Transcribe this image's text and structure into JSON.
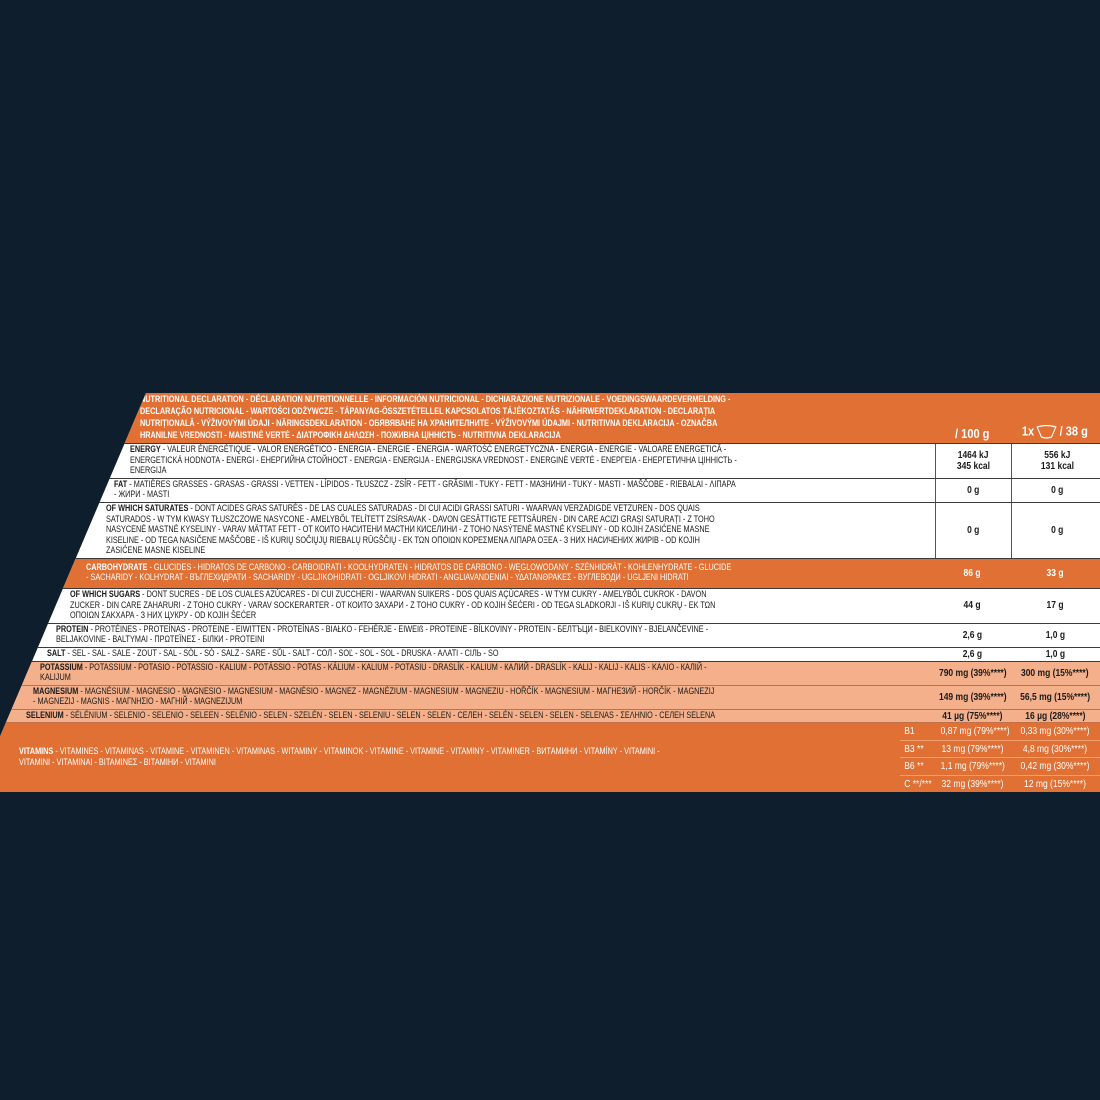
{
  "header": {
    "title_bold": "",
    "title": "NUTRITIONAL DECLARATION - DÉCLARATION NUTRITIONNELLE - INFORMACIÓN NUTRICIONAL - DICHIARAZIONE NUTRIZIONALE - VOEDINGSWAARDEVERMELDING - DECLARAÇÃO NUTRICIONAL - WARTOŚCI ODŻYWCZE - TÁPANYAG-ÖSSZETÉTELLEL KAPCSOLATOS TÁJÉKOZTATÁS - NÄHRWERTDEKLARATION - DECLARAȚIA NUTRIȚIONALĂ - VÝŽIVOVÝMI ÚDAJI - NÄRINGSDEKLARATION - ОБЯВЯВАНЕ НА ХРАНИТЕЛНИТЕ - VÝŽIVOVÝMI ÚDAJMI - NUTRITIVNA DEKLARACIJA - OZNAČBA HRANILNE VREDNOSTI - MAISTINĖ VERTĖ - ΔΙΑΤΡΟΦΙΚΗ ΔΗΛΩΣΗ - ПОЖИВНА ЦІННІСТЬ - NUTRITIVNA DEKLARACIJA",
    "col1": "/ 100 g",
    "col2_prefix": "1x",
    "col2_icon": "bowl-icon",
    "col2": "/ 38 g"
  },
  "rows": [
    {
      "name": "ENERGY",
      "rest": " - VALEUR ÉNERGÉTIQUE - VALOR ENERGÉTICO - ENERGIA - ENERGIE - ENERGIA - WARTOŚĆ ENERGETYCZNA - ENERGIA - ENERGIE - VALOARE ENERGETICĂ - ENERGETICKÁ HODNOTA - ENERGI - ЕНЕРГИЙНА СТОЙНОСТ - ENERGIA - ENERGIJA - ENERGIJSKA VREDNOST - ENERGINĖ VERTĖ - ΕΝΕΡΓΕΙΑ - ЕНЕРГЕТИЧНА ЦІННІСТЬ - ENERGIJA",
      "v100": "1464 kJ",
      "v100b": "345 kcal",
      "vserv": "556 kJ",
      "vservb": "131 kcal"
    },
    {
      "name": "FAT",
      "rest": " - MATIÈRES GRASSES - GRASAS - GRASSI - VETTEN - LÍPIDOS - TŁUSZCZ - ZSÍR - FETT - GRĂSIMI - TUKY - FETT - МАЗНИНИ - TUKY - MASTI - MAŠČOBE - RIEBALAI - ΛΙΠΑΡΑ - ЖИРИ - MASTI",
      "v100": "0 g",
      "vserv": "0 g"
    },
    {
      "name": "OF WHICH SATURATES",
      "rest": " - DONT ACIDES GRAS SATURÉS - DE LAS CUALES SATURADAS - DI CUI ACIDI GRASSI SATURI - WAARVAN VERZADIGDE VETZUREN - DOS QUAIS SATURADOS - W TYM KWASY TŁUSZCZOWE NASYCONE - AMELYBŐL TELÍTETT ZSÍRSAVAK - DAVON GESÄTTIGTE FETTSÄUREN - DIN CARE ACIZI GRAȘI SATURAȚI - Z TOHO NASYCENÉ MASTNÉ KYSELINY - VARAV MÄTTAT FETT - ОТ КОИТО НАСИТЕНИ МАСТНИ КИСЕЛИНИ - Z TOHO NASÝTENÉ MASTNÉ KYSELINY - OD KOJIH ZASIĆENE MASNE KISELINE - OD TEGA NASIČENE MAŠČOBE - IŠ KURIŲ SOČIŲJŲ RIEBALŲ RŪGŠČIŲ - ΕΚ ΤΩΝ ΟΠΟΙΩΝ ΚΟΡΕΣΜΕΝΑ ΛΙΠΑΡΑ ΟΞΕΑ - З НИХ НАСИЧЕНИХ ЖИРІВ - OD KOJIH ZASIĆENE MASNE KISELINE",
      "v100": "0 g",
      "vserv": "0 g"
    },
    {
      "name": "CARBOHYDRATE",
      "rest": " - GLUCIDES - HIDRATOS DE CARBONO - CARBOIDRATI - KOOLHYDRATEN - HIDRATOS DE CARBONO - WĘGLOWODANY - SZÉNHIDRÁT - KOHLENHYDRATE - GLUCIDE - SACHARIDY - KOLHYDRAT - ВЪГЛЕХИДРАТИ - SACHARIDY - UGLJIKOHIDRATI - OGLJIKOVI HIDRATI - ANGLIAVANDENIAI - ΥΔΑΤΑΝΘΡΑΚΕΣ - ВУГЛЕВОДИ - UGLJENI HIDRATI",
      "v100": "86 g",
      "vserv": "33 g"
    },
    {
      "name": "OF WHICH SUGARS",
      "rest": " - DONT SUCRES - DE LOS CUALES AZÚCARES - DI CUI ZUCCHERI - WAARVAN SUIKERS - DOS QUAIS AÇÚCARES - W TYM CUKRY - AMELYBŐL CUKROK - DAVON ZUCKER - DIN CARE ZAHARURI - Z TOHO CUKRY - VARAV SOCKERARTER - ОТ КОИТО ЗАХАРИ - Z TOHO CUKRY - OD KOJIH ŠEĆERI - OD TEGA SLADKORJI - IŠ KURIŲ CUKRŲ - ΕΚ ΤΩΝ ΟΠΟΙΩΝ ΣΑΚΧΑΡΑ - З НИХ ЦУКРУ - OD KOJIH ŠEĆER",
      "v100": "44 g",
      "vserv": "17 g"
    },
    {
      "name": "PROTEIN",
      "rest": " - PROTÉINES - PROTEÍNAS - PROTEINE - EIWITTEN - PROTEÍNAS - BIAŁKO - FEHÉRJE - EIWEIß - PROTEINE - BÍLKOVINY - PROTEIN - БЕЛТЪЦИ - BIELKOVINY - BJELANČEVINE - BELJAKOVINE - BALTYMAI - ΠΡΩΤΕΪΝΕΣ - БІЛКИ - PROTEINI",
      "v100": "2,6 g",
      "vserv": "1,0 g"
    },
    {
      "name": "SALT",
      "rest": " - SEL - SAL - SALE - ZOUT - SAL - SÓL - SÓ - SALZ - SARE - SŮL - SALT - СОЛ - SOĽ - SOL - SOL - DRUSKA - ΑΛΑΤΙ - СІЛЬ - SO",
      "v100": "2,6 g",
      "vserv": "1,0 g"
    },
    {
      "name": "POTASSIUM",
      "rest": " - POTASSIUM - POTASIO - POTASSIO - KALIUM - POTÁSSIO - POTAS - KÁLIUM - KALIUM - POTASIU - DRASLÍK - KALIUM - КАЛИЙ - DRASLÍK - KALIJ - KALIJ - KALIS - ΚΑΛΙΟ - КАЛІЙ - KALIJUM",
      "v100": "790 mg (39%****)",
      "vserv": "300 mg (15%****)"
    },
    {
      "name": "MAGNESIUM",
      "rest": " - MAGNÉSIUM - MAGNESIO - MAGNESIO - MAGNESIUM - MAGNÉSIO - MAGNEZ - MAGNÉZIUM - MAGNESIUM - MAGNEZIU - HOŘČÍK - MAGNESIUM - МАГНЕЗИЙ - HORČÍK - MAGNEZIJ - MAGNEZIJ - MAGNIS - ΜΑΓΝΗΣΙΟ - МАГНІЙ - MAGNEZIJUM",
      "v100": "149 mg (39%****)",
      "vserv": "56,5 mg (15%****)"
    },
    {
      "name": "SELENIUM",
      "rest": " - SÉLÉNIUM - SELENIO - SELENIO - SELEEN - SELÉNIO - SELEN - SZELÉN - SELEN - SELENIU - SELEN - SELEN - СЕЛЕН - SELÉN - SELEN - SELEN - SELENAS - ΣΕΛΗΝΙΟ - СЕЛЕН SELENA",
      "v100": "41 µg (75%****)",
      "vserv": "16 µg (28%****)"
    }
  ],
  "vitamins": {
    "name": "VITAMINS",
    "rest": " - VITAMINES - VITAMINAS - VITAMINE - VITAMINEN - VITAMINAS - WITAMINY - VITAMINOK - VITAMINE - VITAMINE - VITAMINY - VITAMINER - ВИТАМИНИ - VITAMÍNY - VITAMINI - VITAMINI - VITAMINAI - ΒΙΤΑΜΙΝΕΣ - ВІТАМІНИ - VITAMINI",
    "items": [
      {
        "name": "B1",
        "v100": "0,87 mg (79%****)",
        "vserv": "0,33 mg (30%****)"
      },
      {
        "name": "B3 **",
        "v100": "13 mg (79%****)",
        "vserv": "4,8 mg (30%****)"
      },
      {
        "name": "B6 **",
        "v100": "1,1 mg (79%****)",
        "vserv": "0,42 mg (30%****)"
      },
      {
        "name": "C **/***",
        "v100": "32 mg (39%****)",
        "vserv": "12 mg (15%****)"
      }
    ]
  },
  "colors": {
    "background": "#0f1e2c",
    "orange": "#e07033",
    "salmon": "#f4b08a",
    "white": "#ffffff"
  }
}
